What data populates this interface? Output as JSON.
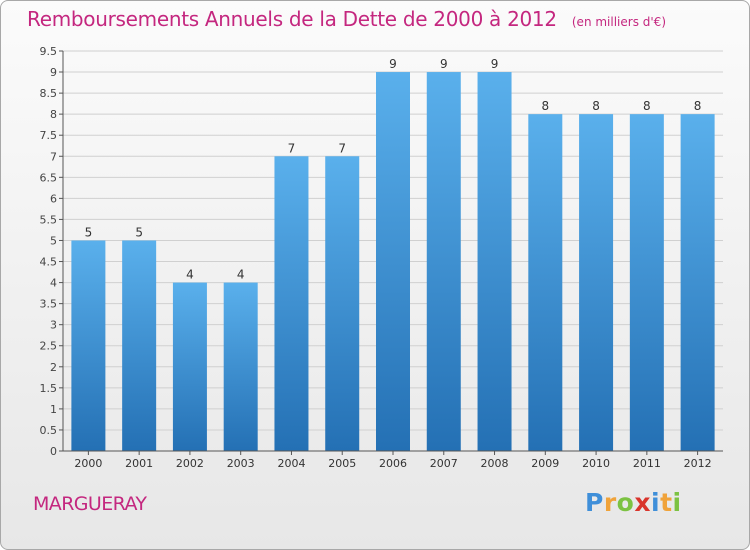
{
  "chart_data": {
    "type": "bar",
    "title": "Remboursements Annuels de la Dette de 2000 à 2012",
    "subtitle": "(en milliers d'€)",
    "categories": [
      "2000",
      "2001",
      "2002",
      "2003",
      "2004",
      "2005",
      "2006",
      "2007",
      "2008",
      "2009",
      "2010",
      "2011",
      "2012"
    ],
    "values": [
      5,
      5,
      4,
      4,
      7,
      7,
      9,
      9,
      9,
      8,
      8,
      8,
      8
    ],
    "data_labels": [
      "5",
      "5",
      "4",
      "4",
      "7",
      "7",
      "9",
      "9",
      "9",
      "8",
      "8",
      "8",
      "8"
    ],
    "ylim": [
      0,
      9.5
    ],
    "yticks": [
      "0",
      "0.5",
      "1",
      "1.5",
      "2",
      "2.5",
      "3",
      "3.5",
      "4",
      "4.5",
      "5",
      "5.5",
      "6",
      "6.5",
      "7",
      "7.5",
      "8",
      "8.5",
      "9",
      "9.5"
    ],
    "grid": true,
    "bar_color": "#3a8fd6",
    "bar_color_top": "#5ab0ec",
    "bar_color_bottom": "#2470b4"
  },
  "commune": "MARGUERAY",
  "logo": {
    "letters": [
      "P",
      "r",
      "o",
      "x",
      "i",
      "t",
      "i"
    ],
    "alt": "Proxiti"
  },
  "colors": {
    "title": "#c4277f",
    "grid": "#d0d0d0"
  }
}
